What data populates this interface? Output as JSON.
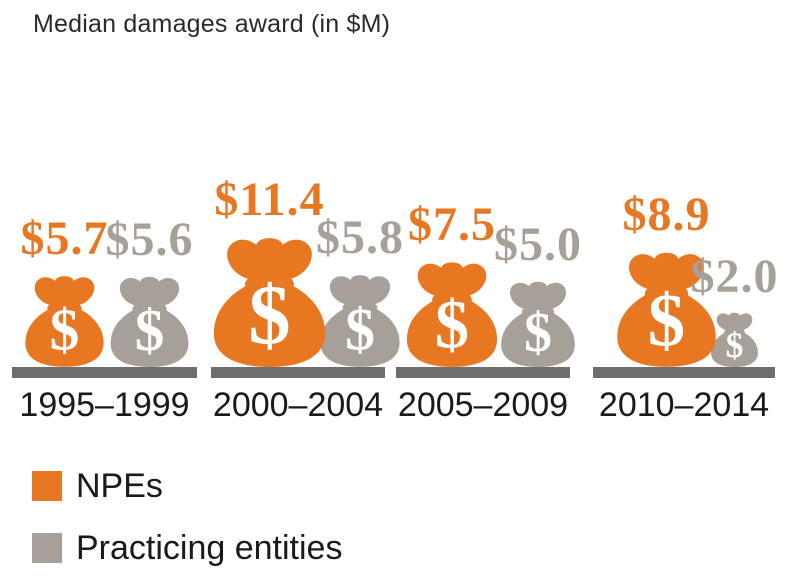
{
  "chart_data": {
    "type": "bar",
    "subtype": "pictogram-money-bags",
    "title": "Median damages award (in $M)",
    "unit": "$M",
    "categories": [
      "1995–1999",
      "2000–2004",
      "2005–2009",
      "2010–2014"
    ],
    "series": [
      {
        "name": "NPEs",
        "color": "#E87722",
        "values": [
          5.7,
          11.4,
          7.5,
          8.9
        ],
        "labels": [
          "$5.7",
          "$11.4",
          "$7.5",
          "$8.9"
        ]
      },
      {
        "name": "Practicing entities",
        "color": "#A7A098",
        "values": [
          5.6,
          5.8,
          5.0,
          2.0
        ],
        "labels": [
          "$5.6",
          "$5.8",
          "$5.0",
          "$2.0"
        ]
      }
    ],
    "icon": "money-bag",
    "icon_symbol": "$",
    "sizing": "area-proportional",
    "baseline_color": "#6E6E6E",
    "grid": false,
    "legend_position": "bottom-left"
  }
}
